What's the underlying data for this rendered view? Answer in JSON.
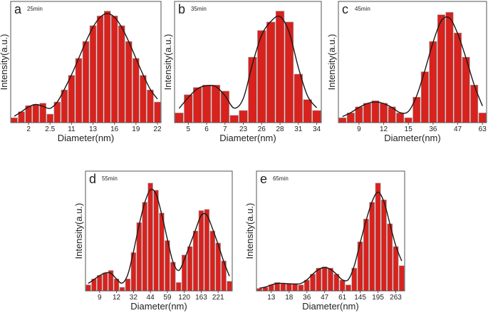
{
  "chart_data": [
    {
      "type": "bar",
      "panel_letter": "a",
      "annotation": "25min",
      "xlabel": "Diameter(nm)",
      "ylabel": "Intensity(a.u.)",
      "tick_labels": [
        "2",
        "2.5",
        "11",
        "13",
        "16",
        "19",
        "22"
      ],
      "tick_bar_index": [
        2,
        5,
        8,
        11,
        14,
        17,
        20
      ],
      "values": [
        4,
        9,
        14,
        15,
        16,
        7,
        17,
        27,
        39,
        53,
        67,
        80,
        88,
        92,
        88,
        80,
        67,
        53,
        39,
        27,
        17
      ],
      "ylim": [
        0,
        100
      ],
      "fit_curve": true
    },
    {
      "type": "bar",
      "panel_letter": "b",
      "annotation": "35min",
      "xlabel": "Diameter(nm)",
      "ylabel": "Intensity(a.u.)",
      "tick_labels": [
        "5",
        "6",
        "7",
        "23",
        "26",
        "28",
        "31",
        "34"
      ],
      "tick_bar_index": [
        1,
        3,
        5,
        7,
        9,
        11,
        13,
        15
      ],
      "values": [
        8,
        23,
        29,
        31,
        31,
        26,
        6,
        10,
        54,
        76,
        83,
        92,
        83,
        40,
        19,
        10
      ],
      "ylim": [
        0,
        100
      ],
      "fit_curve": true
    },
    {
      "type": "bar",
      "panel_letter": "c",
      "annotation": "45min",
      "xlabel": "Diameter(nm)",
      "ylabel": "Intensity(a.u.)",
      "tick_labels": [
        "9",
        "12",
        "15",
        "36",
        "47",
        "63"
      ],
      "tick_bar_index": [
        2,
        5,
        8,
        11,
        14,
        17
      ],
      "values": [
        4,
        8,
        13,
        16,
        18,
        16,
        13,
        8,
        4,
        21,
        42,
        67,
        89,
        91,
        74,
        54,
        31,
        8
      ],
      "ylim": [
        0,
        100
      ],
      "fit_curve": true
    },
    {
      "type": "bar",
      "panel_letter": "d",
      "annotation": "55min",
      "xlabel": "Diameter(nm)",
      "ylabel": "Intensity(a.u.)",
      "tick_labels": [
        "9",
        "12",
        "32",
        "44",
        "59",
        "120",
        "163",
        "221"
      ],
      "tick_bar_index": [
        2,
        5,
        8,
        11,
        14,
        17,
        20,
        23
      ],
      "values": [
        5,
        10,
        13,
        15,
        17,
        10,
        3,
        10,
        32,
        57,
        74,
        90,
        84,
        65,
        42,
        24,
        7,
        30,
        37,
        50,
        67,
        68,
        50,
        40,
        25,
        8
      ],
      "ylim": [
        0,
        100
      ],
      "fit_curve": true
    },
    {
      "type": "bar",
      "panel_letter": "e",
      "annotation": "65min",
      "xlabel": "Diameter(nm)",
      "ylabel": "Intensity(a.u.)",
      "tick_labels": [
        "13",
        "18",
        "36",
        "47",
        "61",
        "145",
        "195",
        "263"
      ],
      "tick_bar_index": [
        2,
        5,
        8,
        11,
        14,
        17,
        20,
        23
      ],
      "values": [
        2,
        3,
        5,
        7,
        6,
        6,
        6,
        5,
        9,
        14,
        19,
        20,
        19,
        14,
        9,
        5,
        19,
        41,
        60,
        74,
        90,
        76,
        56,
        37,
        21
      ],
      "ylim": [
        0,
        100
      ],
      "fit_curve": true
    }
  ],
  "colors": {
    "bar": "#d8221e",
    "bar_edge": "#9a9a9a",
    "curve": "#1a1a1a",
    "frame": "#555555"
  }
}
